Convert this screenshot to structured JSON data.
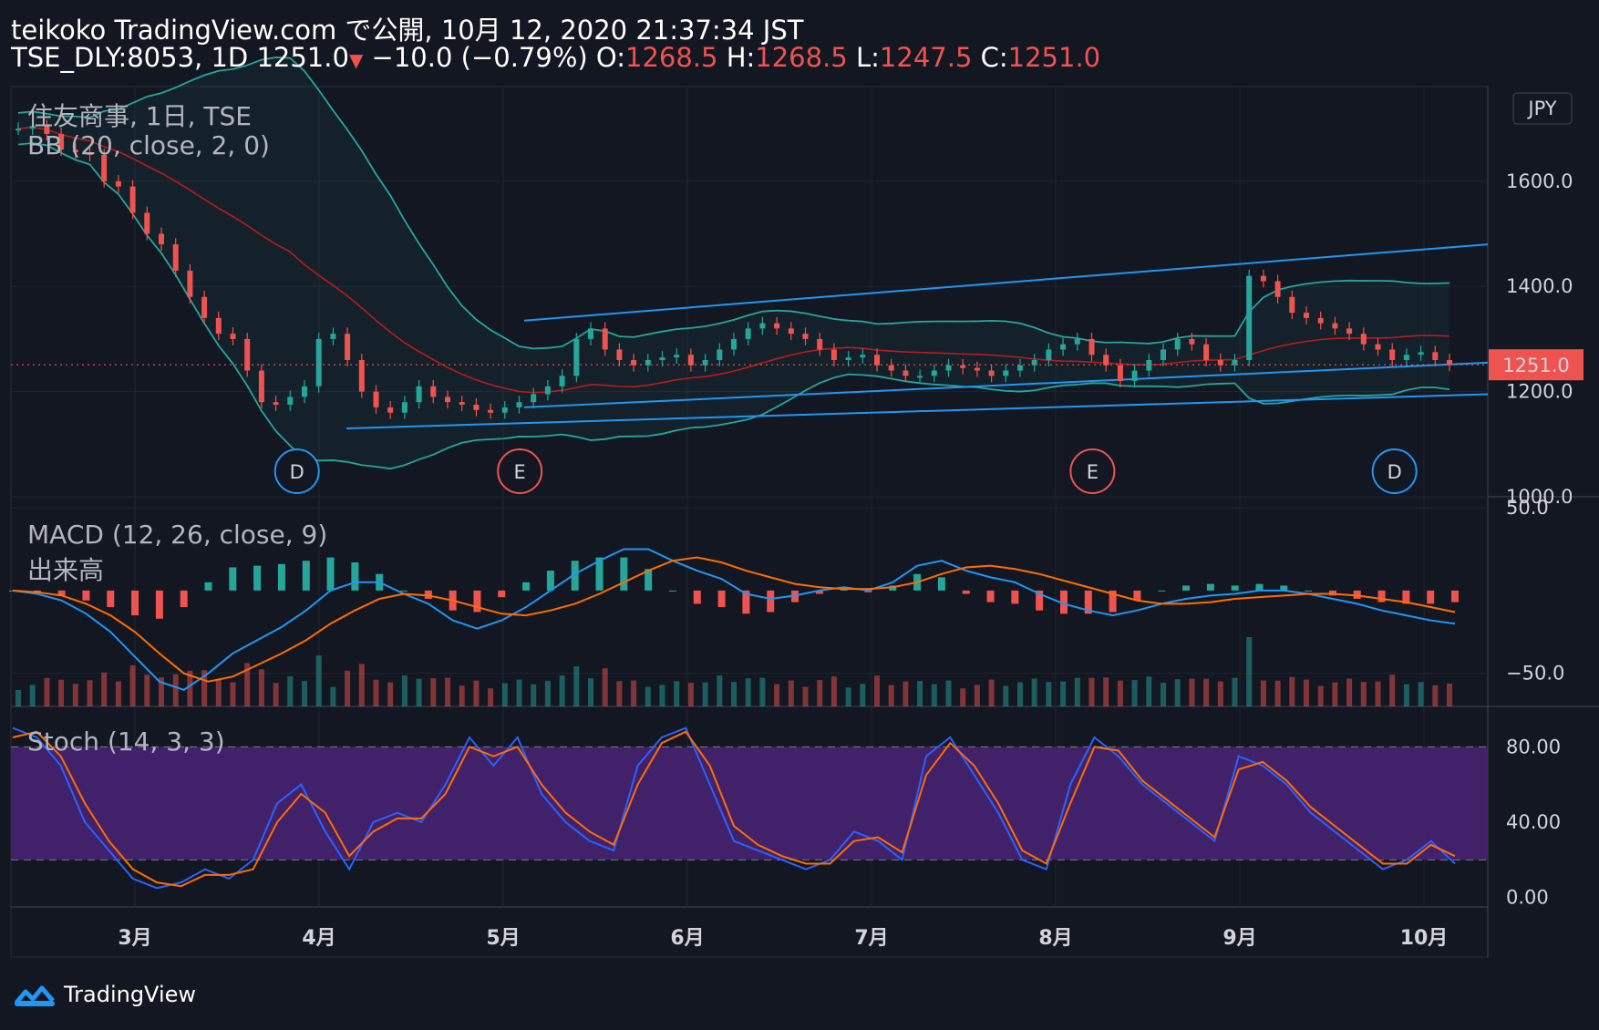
{
  "header": {
    "line1": "teikoko TradingView.com で公開, 10月 12, 2020 21:37:34 JST",
    "symbol": "TSE_DLY:8053, 1D 1251.0",
    "change": "−10.0 (−0.79%)",
    "o_label": "O:",
    "o_value": "1268.5",
    "h_label": "H:",
    "h_value": "1268.5",
    "l_label": "L:",
    "l_value": "1247.5",
    "c_label": "C:",
    "c_value": "1251.0"
  },
  "price_pane": {
    "title": "住友商事, 1日, TSE",
    "bb_label": "BB (20, close, 2, 0)",
    "currency_badge": "JPY",
    "last_price_tag": "1251.0"
  },
  "macd_pane": {
    "macd_label": "MACD (12, 26, close, 9)",
    "volume_label": "出来高"
  },
  "stoch_pane": {
    "stoch_label": "Stoch (14, 3, 3)"
  },
  "footer": {
    "brand": "TradingView"
  },
  "colors": {
    "background": "#131722",
    "up": "#26a69a",
    "down": "#ef5350",
    "macd_line": "#2196f3",
    "signal_line": "#ff6d00",
    "bb_band": "#26a69a",
    "bb_basis": "#b71c1c",
    "trendline": "#2196f3",
    "stoch_k": "#2962ff",
    "stoch_d": "#ff6d00",
    "stoch_band": "#4a2377"
  },
  "chart_data": [
    {
      "type": "candlestick",
      "title": "住友商事, 1日, TSE",
      "x_ticks": [
        "3月",
        "4月",
        "5月",
        "6月",
        "7月",
        "8月",
        "9月",
        "10月"
      ],
      "y_ticks": [
        "1600.0",
        "1400.0",
        "1200.0",
        "1000.0"
      ],
      "ylim": [
        1000,
        1780
      ],
      "last_price": 1251.0,
      "close_series": [
        1700,
        1705,
        1690,
        1660,
        1655,
        1650,
        1600,
        1590,
        1540,
        1500,
        1480,
        1430,
        1380,
        1340,
        1310,
        1300,
        1240,
        1180,
        1175,
        1190,
        1210,
        1300,
        1310,
        1260,
        1200,
        1170,
        1160,
        1180,
        1210,
        1190,
        1180,
        1175,
        1165,
        1160,
        1170,
        1180,
        1195,
        1210,
        1230,
        1300,
        1320,
        1280,
        1260,
        1250,
        1260,
        1265,
        1270,
        1250,
        1260,
        1280,
        1300,
        1320,
        1330,
        1320,
        1310,
        1300,
        1280,
        1260,
        1265,
        1270,
        1250,
        1240,
        1230,
        1230,
        1240,
        1250,
        1245,
        1240,
        1230,
        1240,
        1250,
        1260,
        1280,
        1290,
        1300,
        1270,
        1250,
        1220,
        1240,
        1260,
        1280,
        1300,
        1290,
        1260,
        1250,
        1260,
        1420,
        1410,
        1380,
        1350,
        1340,
        1330,
        1320,
        1310,
        1290,
        1280,
        1260,
        1270,
        1275,
        1260,
        1251
      ],
      "events": [
        {
          "label": "D",
          "kind": "dividend",
          "month_pos": 0.88
        },
        {
          "label": "E",
          "kind": "earnings",
          "month_pos": 2.09
        },
        {
          "label": "E",
          "kind": "earnings",
          "month_pos": 5.2
        },
        {
          "label": "D",
          "kind": "dividend",
          "month_pos": 6.84
        }
      ],
      "indicators": [
        "Bollinger Bands (20, close, 2, 0)"
      ]
    },
    {
      "type": "line",
      "title": "MACD (12, 26, close, 9)",
      "y_ticks": [
        "50.0",
        "−50.0"
      ],
      "ylim": [
        -70,
        55
      ],
      "series": [
        {
          "name": "MACD",
          "values": [
            0,
            -2,
            -6,
            -14,
            -25,
            -40,
            -55,
            -60,
            -50,
            -38,
            -30,
            -22,
            -12,
            0,
            5,
            5,
            -2,
            -8,
            -18,
            -23,
            -18,
            -10,
            0,
            10,
            18,
            25,
            25,
            18,
            12,
            7,
            -2,
            -5,
            -3,
            0,
            2,
            0,
            5,
            15,
            18,
            12,
            8,
            5,
            -2,
            -8,
            -12,
            -15,
            -12,
            -8,
            -5,
            -3,
            -2,
            0,
            0,
            -2,
            -5,
            -8,
            -12,
            -15,
            -18,
            -20
          ]
        },
        {
          "name": "Signal",
          "values": [
            0,
            -1,
            -3,
            -8,
            -15,
            -25,
            -38,
            -50,
            -55,
            -52,
            -45,
            -38,
            -30,
            -20,
            -12,
            -5,
            -2,
            -3,
            -6,
            -10,
            -14,
            -15,
            -12,
            -8,
            -2,
            5,
            12,
            18,
            20,
            17,
            12,
            8,
            4,
            2,
            1,
            1,
            2,
            5,
            10,
            14,
            15,
            13,
            10,
            6,
            2,
            -2,
            -6,
            -8,
            -8,
            -7,
            -5,
            -4,
            -3,
            -2,
            -2,
            -3,
            -5,
            -7,
            -10,
            -13
          ]
        }
      ]
    },
    {
      "type": "line",
      "title": "Stoch (14, 3, 3)",
      "y_ticks": [
        "80.00",
        "40.00",
        "0.00"
      ],
      "ylim": [
        -5,
        100
      ],
      "band": [
        20,
        80
      ],
      "series": [
        {
          "name": "%K",
          "values": [
            90,
            85,
            70,
            40,
            25,
            10,
            5,
            8,
            15,
            10,
            20,
            50,
            60,
            35,
            15,
            40,
            45,
            40,
            60,
            85,
            70,
            85,
            55,
            40,
            30,
            25,
            70,
            85,
            90,
            60,
            30,
            25,
            20,
            15,
            20,
            35,
            30,
            20,
            75,
            85,
            65,
            45,
            20,
            15,
            60,
            85,
            75,
            60,
            50,
            40,
            30,
            75,
            70,
            60,
            45,
            35,
            25,
            15,
            20,
            30,
            18
          ]
        },
        {
          "name": "%D",
          "values": [
            85,
            88,
            75,
            50,
            30,
            15,
            8,
            6,
            12,
            12,
            15,
            40,
            55,
            45,
            22,
            35,
            42,
            42,
            55,
            80,
            75,
            80,
            60,
            45,
            35,
            28,
            60,
            82,
            88,
            70,
            38,
            28,
            22,
            18,
            18,
            30,
            32,
            24,
            65,
            82,
            70,
            50,
            25,
            18,
            50,
            80,
            78,
            62,
            52,
            42,
            32,
            68,
            72,
            62,
            48,
            38,
            28,
            18,
            18,
            28,
            22
          ]
        }
      ]
    }
  ]
}
